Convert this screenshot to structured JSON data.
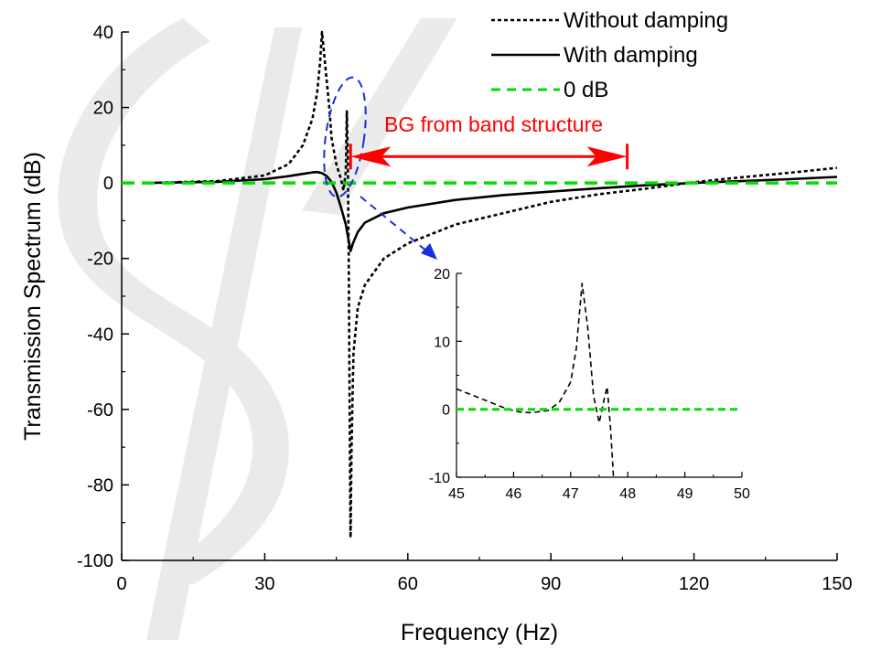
{
  "chart_data": [
    {
      "type": "line",
      "xlabel": "Frequency (Hz)",
      "ylabel": "Transmission Spectrum (dB)",
      "xlim": [
        0,
        150
      ],
      "ylim": [
        -100,
        40
      ],
      "x_ticks": [
        0,
        30,
        60,
        90,
        120,
        150
      ],
      "y_ticks": [
        -100,
        -80,
        -60,
        -40,
        -20,
        0,
        20,
        40
      ],
      "legend_position": "top-right",
      "grid": false,
      "series": [
        {
          "name": "Without damping",
          "style": "dotted",
          "color": "#000000",
          "points": [
            [
              5,
              0
            ],
            [
              20,
              0.5
            ],
            [
              30,
              2
            ],
            [
              35,
              5
            ],
            [
              38,
              10
            ],
            [
              40,
              17
            ],
            [
              41,
              24
            ],
            [
              41.6,
              32
            ],
            [
              42,
              40
            ],
            [
              42.4,
              35
            ],
            [
              43,
              27
            ],
            [
              43.6,
              19
            ],
            [
              44,
              12
            ],
            [
              45,
              5
            ],
            [
              46,
              1
            ],
            [
              46.5,
              -2
            ],
            [
              47,
              3
            ],
            [
              47.2,
              19
            ],
            [
              47.4,
              8
            ],
            [
              47.6,
              -20
            ],
            [
              47.8,
              -60
            ],
            [
              47.9,
              -80
            ],
            [
              48,
              -94
            ],
            [
              48.2,
              -70
            ],
            [
              48.6,
              -45
            ],
            [
              49.5,
              -33
            ],
            [
              51,
              -27
            ],
            [
              55,
              -20
            ],
            [
              60,
              -16
            ],
            [
              70,
              -11
            ],
            [
              80,
              -8
            ],
            [
              90,
              -5
            ],
            [
              100,
              -3
            ],
            [
              110,
              -1.5
            ],
            [
              120,
              0.2
            ],
            [
              130,
              1.5
            ],
            [
              140,
              2.7
            ],
            [
              150,
              4
            ]
          ]
        },
        {
          "name": "With damping",
          "style": "solid",
          "color": "#000000",
          "points": [
            [
              5,
              0
            ],
            [
              20,
              0.3
            ],
            [
              30,
              1
            ],
            [
              35,
              1.8
            ],
            [
              38,
              2.4
            ],
            [
              40,
              2.8
            ],
            [
              41,
              2.9
            ],
            [
              42,
              2.6
            ],
            [
              43,
              1.8
            ],
            [
              44,
              0.3
            ],
            [
              45,
              -2.5
            ],
            [
              46,
              -6.5
            ],
            [
              47,
              -11
            ],
            [
              47.7,
              -16
            ],
            [
              48,
              -18
            ],
            [
              48.5,
              -16
            ],
            [
              49.5,
              -13
            ],
            [
              51,
              -10.5
            ],
            [
              55,
              -8
            ],
            [
              60,
              -6.5
            ],
            [
              70,
              -4.5
            ],
            [
              80,
              -3.2
            ],
            [
              90,
              -2.3
            ],
            [
              100,
              -1.4
            ],
            [
              110,
              -0.6
            ],
            [
              120,
              0
            ],
            [
              130,
              0.5
            ],
            [
              140,
              1
            ],
            [
              150,
              1.6
            ]
          ]
        },
        {
          "name": "0 dB",
          "style": "dashed",
          "color": "#00dd00",
          "points": [
            [
              0,
              0
            ],
            [
              150,
              0
            ]
          ]
        }
      ],
      "annotations": [
        {
          "text": "BG from band structure",
          "color": "#ff0000",
          "x_range": [
            48,
            106
          ],
          "y": 7
        }
      ]
    },
    {
      "type": "line",
      "xlim": [
        45,
        50
      ],
      "ylim": [
        -10,
        20
      ],
      "x_ticks": [
        45,
        46,
        47,
        48,
        49,
        50
      ],
      "y_ticks": [
        -10,
        0,
        10,
        20
      ],
      "series": [
        {
          "style": "dashed",
          "color": "#000000",
          "points": [
            [
              45,
              3
            ],
            [
              45.3,
              2
            ],
            [
              45.6,
              1
            ],
            [
              45.9,
              0
            ],
            [
              46.1,
              -0.4
            ],
            [
              46.3,
              -0.5
            ],
            [
              46.6,
              -0.2
            ],
            [
              46.8,
              1
            ],
            [
              47,
              4
            ],
            [
              47.1,
              9
            ],
            [
              47.2,
              18.5
            ],
            [
              47.3,
              12
            ],
            [
              47.4,
              2
            ],
            [
              47.5,
              -2
            ],
            [
              47.6,
              2
            ],
            [
              47.64,
              3.3
            ],
            [
              47.7,
              -3
            ],
            [
              47.75,
              -10
            ]
          ]
        },
        {
          "style": "dashed",
          "color": "#00dd00",
          "points": [
            [
              45,
              0
            ],
            [
              50,
              0
            ]
          ]
        }
      ]
    }
  ],
  "legend": {
    "without_damping": "Without damping",
    "with_damping": "With damping",
    "zero_db": "0 dB"
  },
  "annotation_label": "BG from band structure"
}
